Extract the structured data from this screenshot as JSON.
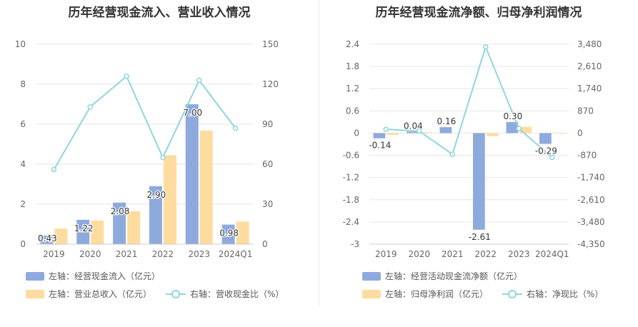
{
  "colors": {
    "bar_primary": "#8eaadd",
    "bar_secondary": "#fedb9f",
    "line": "#8fd6dd",
    "grid": "#e6e6e6",
    "axis_text": "#666666"
  },
  "left_panel": {
    "title": "历年经营现金流入、营业收入情况",
    "legend": {
      "bar1": "左轴：经营现金流入（亿元）",
      "bar2": "左轴：营业总收入（亿元）",
      "line": "右轴：营收现金比（%）"
    }
  },
  "right_panel": {
    "title": "历年经营现金流净额、归母净利润情况",
    "legend": {
      "bar1": "左轴：经营活动现金流净额（亿元）",
      "bar2": "左轴：归母净利润（亿元）",
      "line": "右轴：净现比（%）"
    }
  },
  "chart_data": [
    {
      "type": "bar",
      "title": "历年经营现金流入、营业收入情况",
      "categories": [
        "2019",
        "2020",
        "2021",
        "2022",
        "2023",
        "2024Q1"
      ],
      "ylim_left": [
        0,
        10
      ],
      "yticks_left": [
        "0",
        "2",
        "4",
        "6",
        "8",
        "10"
      ],
      "ylim_right": [
        0,
        150
      ],
      "yticks_right": [
        "0",
        "30",
        "60",
        "90",
        "120",
        "150"
      ],
      "grid": true,
      "legend_position": "bottom",
      "series": [
        {
          "name": "左轴：经营现金流入（亿元）",
          "axis": "left",
          "kind": "bar",
          "values": [
            0.43,
            1.22,
            2.08,
            2.9,
            7.0,
            0.98
          ],
          "labels": [
            "0.43",
            "1.22",
            "2.08",
            "2.90",
            "7.00",
            "0.98"
          ]
        },
        {
          "name": "左轴：营业总收入（亿元）",
          "axis": "left",
          "kind": "bar",
          "values": [
            0.78,
            1.18,
            1.65,
            4.45,
            5.68,
            1.13
          ]
        },
        {
          "name": "右轴：营收现金比（%）",
          "axis": "right",
          "kind": "line",
          "values": [
            56,
            103,
            126,
            65,
            123,
            87
          ]
        }
      ]
    },
    {
      "type": "bar",
      "title": "历年经营现金流净额、归母净利润情况",
      "categories": [
        "2019",
        "2020",
        "2021",
        "2022",
        "2023",
        "2024Q1"
      ],
      "ylim_left": [
        -3,
        2.4
      ],
      "yticks_left": [
        "-3",
        "-2.4",
        "-1.8",
        "-1.2",
        "-0.6",
        "0",
        "0.6",
        "1.2",
        "1.8",
        "2.4"
      ],
      "ylim_right": [
        -4350,
        3480
      ],
      "yticks_right": [
        "-4,350",
        "-3,480",
        "-2,610",
        "-1,740",
        "-870",
        "0",
        "870",
        "1,740",
        "2,610",
        "3,480"
      ],
      "grid": true,
      "legend_position": "bottom",
      "series": [
        {
          "name": "左轴：经营活动现金流净额（亿元）",
          "axis": "left",
          "kind": "bar",
          "values": [
            -0.14,
            0.04,
            0.16,
            -2.61,
            0.3,
            -0.29
          ],
          "labels": [
            "-0.14",
            "0.04",
            "0.16",
            "-2.61",
            "0.30",
            "-0.29"
          ]
        },
        {
          "name": "左轴：归母净利润（亿元）",
          "axis": "left",
          "kind": "bar",
          "values": [
            -0.05,
            0.02,
            0.0,
            -0.08,
            0.17,
            0.01
          ]
        },
        {
          "name": "右轴：净现比（%）",
          "axis": "right",
          "kind": "line",
          "values": [
            150,
            80,
            -830,
            3380,
            180,
            -950
          ]
        }
      ]
    }
  ]
}
